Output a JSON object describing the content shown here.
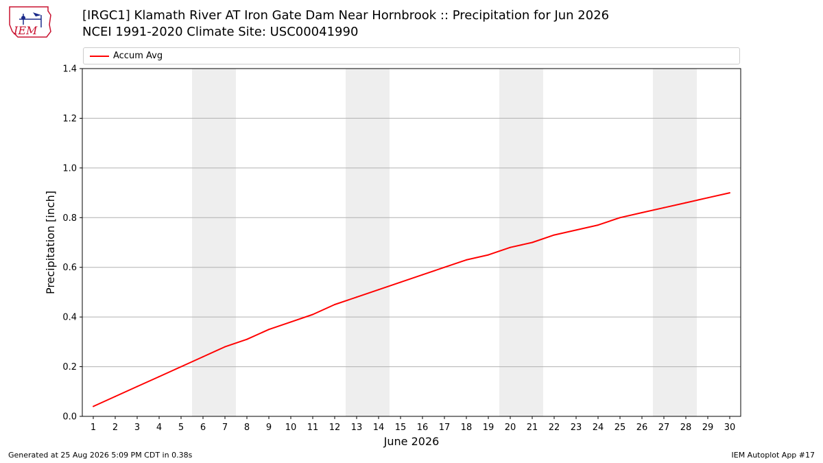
{
  "header": {
    "title_line1": "[IRGC1] Klamath River  AT Iron Gate Dam Near Hornbrook :: Precipitation for Jun 2026",
    "title_line2": "NCEI 1991-2020 Climate Site: USC00041990",
    "logo_text": "IEM"
  },
  "footer": {
    "left": "Generated at 25 Aug 2026 5:09 PM CDT in 0.38s",
    "right": "IEM Autoplot App #17"
  },
  "colors": {
    "series": "#ff0000",
    "weekend_band": "#eeeeee",
    "grid": "#b0b0b0",
    "logo": "#c8102e"
  },
  "chart_data": {
    "type": "line",
    "xlabel": "June 2026",
    "ylabel": "Precipitation [inch]",
    "xlim": [
      0.5,
      30.5
    ],
    "ylim": [
      0,
      1.4
    ],
    "yticks": [
      0.0,
      0.2,
      0.4,
      0.6,
      0.8,
      1.0,
      1.2,
      1.4
    ],
    "ytick_labels": [
      "0.0",
      "0.2",
      "0.4",
      "0.6",
      "0.8",
      "1.0",
      "1.2",
      "1.4"
    ],
    "x": [
      1,
      2,
      3,
      4,
      5,
      6,
      7,
      8,
      9,
      10,
      11,
      12,
      13,
      14,
      15,
      16,
      17,
      18,
      19,
      20,
      21,
      22,
      23,
      24,
      25,
      26,
      27,
      28,
      29,
      30
    ],
    "grid": "horizontal",
    "legend_position": "top",
    "weekend_bands": [
      [
        5.5,
        7.5
      ],
      [
        12.5,
        14.5
      ],
      [
        19.5,
        21.5
      ],
      [
        26.5,
        28.5
      ]
    ],
    "series": [
      {
        "name": "Accum Avg",
        "values": [
          0.04,
          0.08,
          0.12,
          0.16,
          0.2,
          0.24,
          0.28,
          0.31,
          0.35,
          0.38,
          0.41,
          0.45,
          0.48,
          0.51,
          0.54,
          0.57,
          0.6,
          0.63,
          0.65,
          0.68,
          0.7,
          0.73,
          0.75,
          0.77,
          0.8,
          0.82,
          0.84,
          0.86,
          0.88,
          0.9
        ]
      }
    ]
  }
}
